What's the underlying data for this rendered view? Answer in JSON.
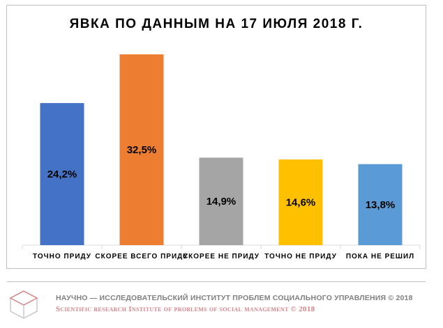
{
  "chart_data": {
    "type": "bar",
    "title": "ЯВКА ПО ДАННЫМ  НА 17 ИЮЛЯ 2018 Г.",
    "categories": [
      "ТОЧНО ПРИДУ",
      "СКОРЕЕ ВСЕГО ПРИДУ",
      "СКОРЕЕ НЕ ПРИДУ",
      "ТОЧНО НЕ ПРИДУ",
      "ПОКА НЕ РЕШИЛ"
    ],
    "values": [
      24.2,
      32.5,
      14.9,
      14.6,
      13.8
    ],
    "value_labels": [
      "24,2%",
      "32,5%",
      "14,9%",
      "14,6%",
      "13,8%"
    ],
    "colors": [
      "#4472c4",
      "#ed7d31",
      "#a5a5a5",
      "#ffc000",
      "#5b9bd5"
    ],
    "ylim": [
      0,
      35
    ],
    "grid": false,
    "legend": "none"
  },
  "footer": {
    "ru": "НАУЧНО — ИССЛЕДОВАТЕЛЬСКИЙ ИНСТИТУТ ПРОБЛЕМ СОЦИАЛЬНОГО УПРАВЛЕНИЯ © 2018",
    "en": "Scientific research Institute of problems of social management © 2018"
  }
}
